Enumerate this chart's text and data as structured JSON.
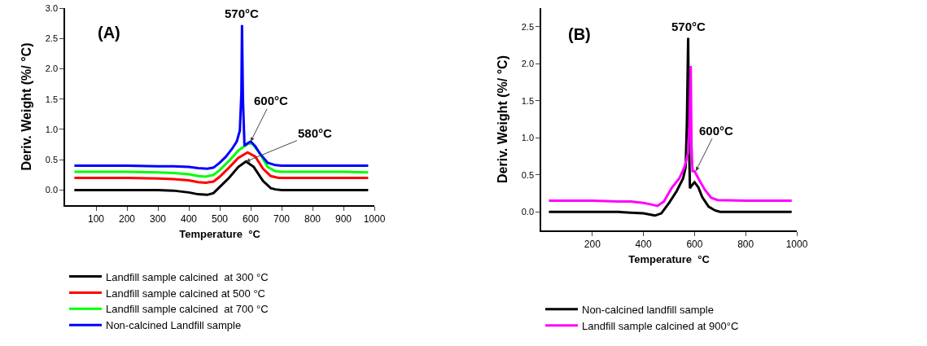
{
  "chart_data": [
    {
      "type": "line",
      "xlabel": "Temperature  °C",
      "ylabel": "Deriv. Weight (%/ °C)",
      "xlim": [
        0,
        1000
      ],
      "xticks": [
        100,
        200,
        300,
        400,
        500,
        600,
        700,
        800,
        900,
        1000
      ],
      "ylim": [
        -0.25,
        3.0
      ],
      "yticks": [
        {
          "value": 0,
          "label": "0.0"
        },
        0.5,
        {
          "value": 1,
          "label": "1.0"
        },
        1.5,
        {
          "value": 2,
          "label": "2.0"
        },
        2.5,
        {
          "value": 3,
          "label": "3.0"
        }
      ],
      "grid": false,
      "legend": "bottom",
      "marker": "none",
      "line_style": "solid",
      "annotations": [
        "(A)",
        {
          "text": "570°C",
          "x": 572,
          "y": 2.72
        },
        {
          "text": "600°C",
          "x": 600,
          "y": 0.8
        },
        {
          "text": "580°C",
          "x": 585,
          "y": 0.47
        }
      ],
      "series": [
        {
          "name": "Landfill sample calcined  at 300 °C",
          "color": "#000000",
          "x": [
            30,
            100,
            200,
            300,
            350,
            400,
            430,
            460,
            480,
            500,
            530,
            560,
            585,
            610,
            640,
            665,
            680,
            700,
            800,
            900,
            980
          ],
          "values": [
            0,
            0,
            0,
            0,
            -0.01,
            -0.04,
            -0.07,
            -0.08,
            -0.05,
            0.05,
            0.2,
            0.38,
            0.47,
            0.38,
            0.15,
            0.03,
            0.01,
            0,
            0,
            0,
            0
          ]
        },
        {
          "name": "Landfill sample calcined at 500 °C",
          "color": "#ff0000",
          "x": [
            30,
            100,
            200,
            300,
            350,
            400,
            430,
            455,
            480,
            500,
            530,
            560,
            590,
            615,
            640,
            665,
            690,
            800,
            900,
            980
          ],
          "values": [
            0.2,
            0.2,
            0.2,
            0.19,
            0.18,
            0.16,
            0.13,
            0.12,
            0.14,
            0.22,
            0.37,
            0.53,
            0.62,
            0.55,
            0.35,
            0.23,
            0.2,
            0.2,
            0.2,
            0.2
          ]
        },
        {
          "name": "Landfill sample calcined  at 700 °C",
          "color": "#00ff00",
          "x": [
            30,
            100,
            200,
            300,
            350,
            400,
            430,
            455,
            480,
            500,
            530,
            560,
            590,
            605,
            630,
            655,
            680,
            700,
            800,
            900,
            980
          ],
          "values": [
            0.3,
            0.3,
            0.3,
            0.29,
            0.28,
            0.26,
            0.23,
            0.22,
            0.25,
            0.33,
            0.48,
            0.65,
            0.76,
            0.77,
            0.6,
            0.38,
            0.31,
            0.3,
            0.3,
            0.3,
            0.29
          ]
        },
        {
          "name": "Non-calcined Landfill sample",
          "color": "#0000ff",
          "x": [
            30,
            100,
            200,
            300,
            350,
            400,
            430,
            460,
            480,
            500,
            520,
            540,
            555,
            565,
            570,
            572,
            575,
            580,
            590,
            600,
            615,
            630,
            655,
            680,
            700,
            800,
            900,
            980
          ],
          "values": [
            0.4,
            0.4,
            0.4,
            0.39,
            0.39,
            0.38,
            0.36,
            0.35,
            0.37,
            0.45,
            0.55,
            0.68,
            0.8,
            0.98,
            1.6,
            2.72,
            1.5,
            0.73,
            0.77,
            0.8,
            0.72,
            0.6,
            0.45,
            0.41,
            0.4,
            0.4,
            0.4,
            0.4
          ]
        }
      ]
    },
    {
      "type": "line",
      "xlabel": "Temperature  °C",
      "ylabel": "Deriv. Weight (%/ °C)",
      "xlim": [
        0,
        1000
      ],
      "xticks": [
        200,
        400,
        600,
        800,
        1000
      ],
      "ylim": [
        -0.25,
        2.75
      ],
      "yticks": [
        {
          "value": 0,
          "label": "0.0"
        },
        0.5,
        {
          "value": 1,
          "label": "1.0"
        },
        1.5,
        {
          "value": 2,
          "label": "2.0"
        },
        2.5
      ],
      "grid": false,
      "legend": "bottom",
      "marker": "none",
      "line_style": "solid",
      "annotations": [
        "(B)",
        {
          "text": "570°C",
          "x": 575,
          "y": 2.35
        },
        {
          "text": "600°C",
          "x": 605,
          "y": 0.55
        }
      ],
      "series": [
        {
          "name": "Non-calcined landfill sample",
          "color": "#000000",
          "x": [
            30,
            100,
            200,
            300,
            350,
            400,
            445,
            470,
            500,
            530,
            555,
            565,
            570,
            575,
            578,
            582,
            590,
            600,
            615,
            630,
            655,
            680,
            700,
            800,
            900,
            980
          ],
          "values": [
            0,
            0,
            0,
            0,
            -0.01,
            -0.02,
            -0.05,
            -0.02,
            0.12,
            0.28,
            0.45,
            0.6,
            1.2,
            2.35,
            1.0,
            0.32,
            0.36,
            0.4,
            0.33,
            0.2,
            0.07,
            0.02,
            0,
            0,
            0,
            0
          ]
        },
        {
          "name": "Landfill sample calcined at 900°C",
          "color": "#ff00ff",
          "x": [
            30,
            100,
            200,
            300,
            350,
            400,
            430,
            455,
            480,
            510,
            540,
            560,
            575,
            580,
            585,
            588,
            592,
            600,
            615,
            640,
            665,
            690,
            800,
            900,
            980
          ],
          "values": [
            0.15,
            0.15,
            0.15,
            0.14,
            0.14,
            0.12,
            0.1,
            0.08,
            0.14,
            0.32,
            0.45,
            0.6,
            0.8,
            1.2,
            1.97,
            0.9,
            0.55,
            0.55,
            0.45,
            0.3,
            0.19,
            0.16,
            0.15,
            0.15,
            0.15
          ]
        }
      ]
    }
  ]
}
